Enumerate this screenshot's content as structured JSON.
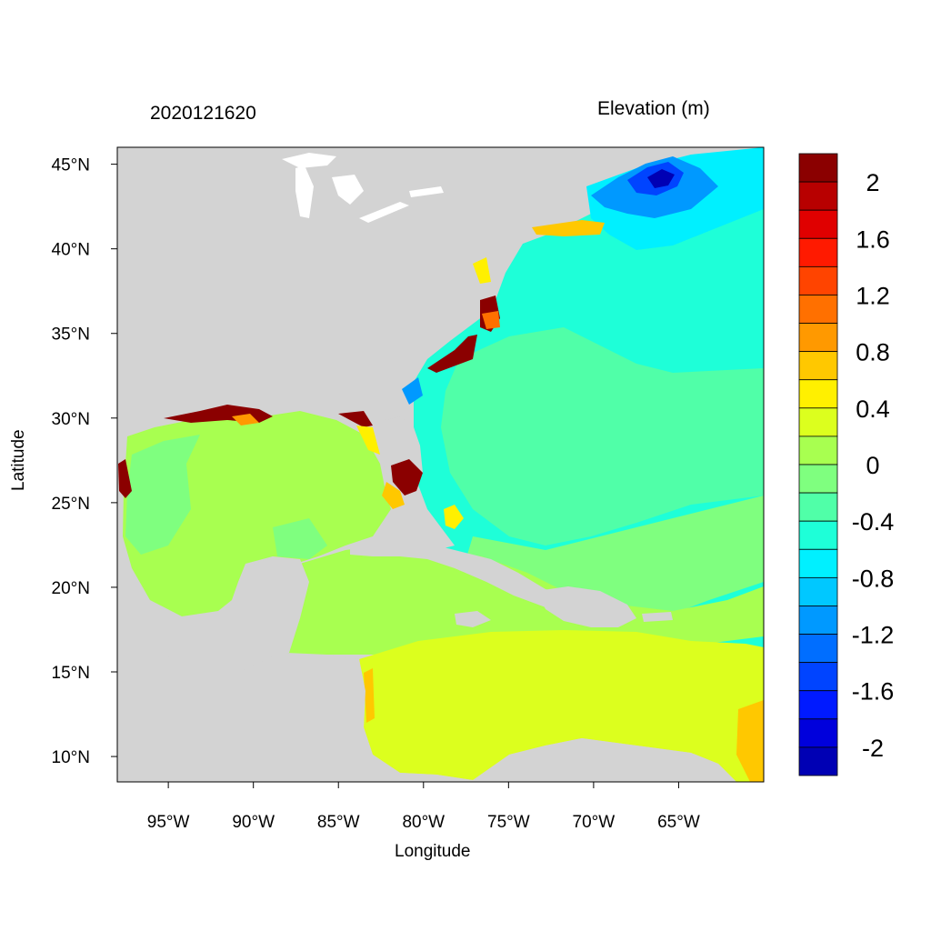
{
  "map": {
    "title_left": "2020121620",
    "title_right": "Elevation (m)",
    "xlabel": "Longitude",
    "ylabel": "Latitude",
    "lon_range": [
      -98,
      -60
    ],
    "lat_range": [
      8.5,
      46
    ],
    "lon_ticks": [
      "95°W",
      "90°W",
      "85°W",
      "80°W",
      "75°W",
      "70°W",
      "65°W"
    ],
    "lon_tick_values": [
      -95,
      -90,
      -85,
      -80,
      -75,
      -70,
      -65
    ],
    "lat_ticks": [
      "45°N",
      "40°N",
      "35°N",
      "30°N",
      "25°N",
      "20°N",
      "15°N",
      "10°N"
    ],
    "lat_tick_values": [
      45,
      40,
      35,
      30,
      25,
      20,
      15,
      10
    ]
  },
  "colorbar": {
    "colors": [
      "#8b0000",
      "#b80000",
      "#e00000",
      "#ff1a00",
      "#ff4400",
      "#ff7000",
      "#ff9900",
      "#ffc800",
      "#fff000",
      "#dcff1e",
      "#a8ff50",
      "#7fff7f",
      "#50ffa8",
      "#1effd8",
      "#00f0ff",
      "#00c8ff",
      "#0099ff",
      "#006eff",
      "#0044ff",
      "#001aff",
      "#0000dc",
      "#0000b4"
    ],
    "labels": [
      "2",
      "1.6",
      "1.2",
      "0.8",
      "0.4",
      "0",
      "-0.4",
      "-0.8",
      "-1.2",
      "-1.6",
      "-2"
    ]
  }
}
